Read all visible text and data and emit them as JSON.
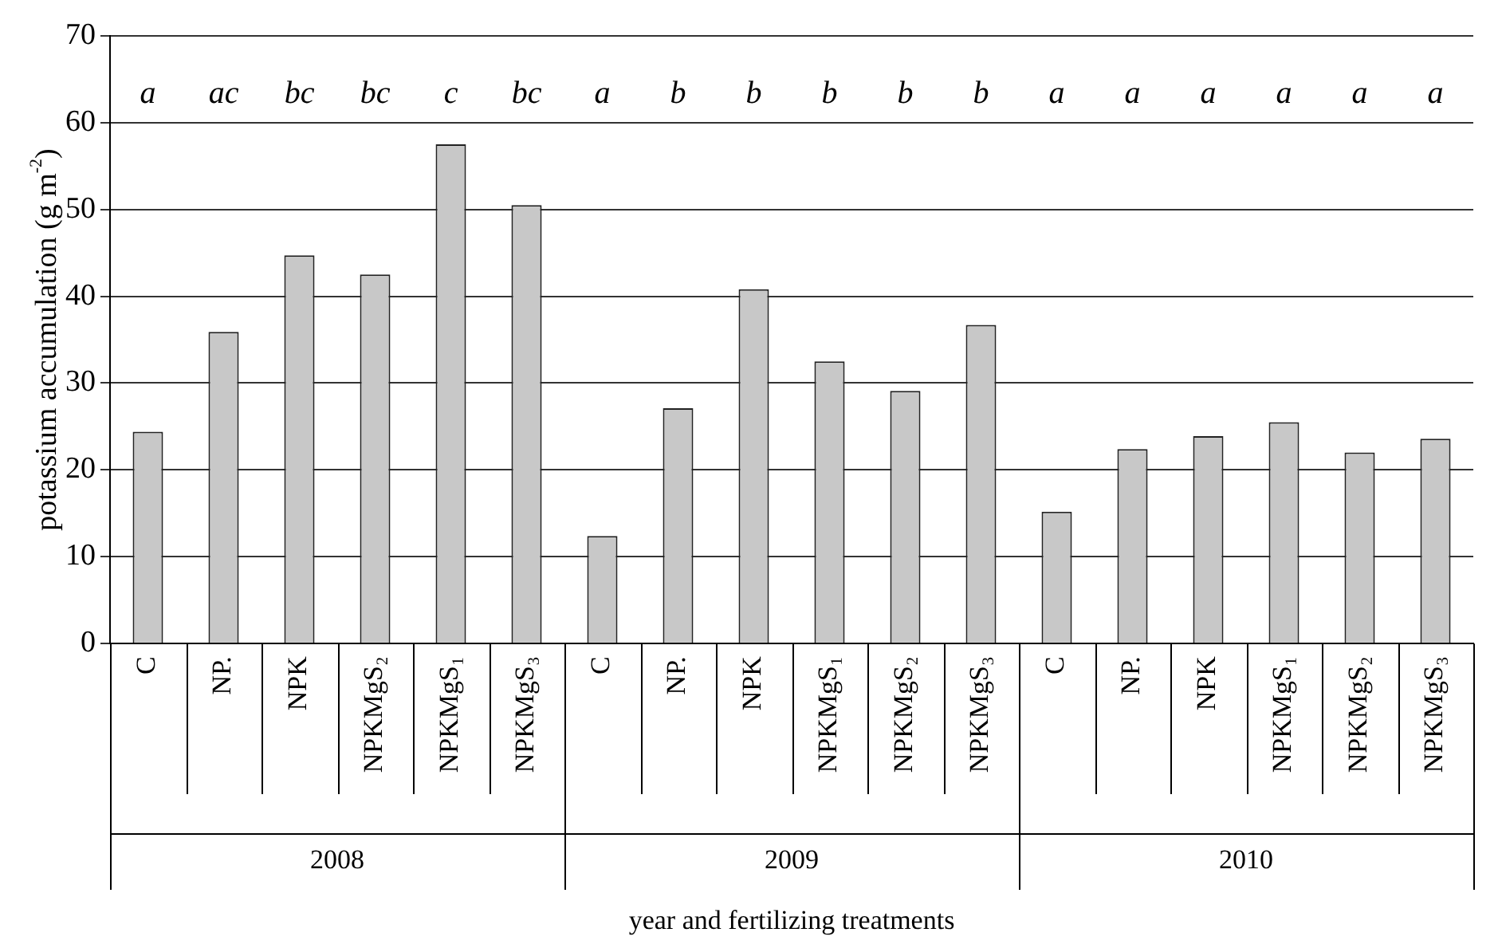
{
  "chart_data": {
    "type": "bar",
    "categories": [
      "C",
      "NP.",
      "NPK",
      "NPKMgS₂",
      "NPKMgS₁",
      "NPKMgS₃",
      "C",
      "NP.",
      "NPK",
      "NPKMgS₁",
      "NPKMgS₂",
      "NPKMgS₃",
      "C",
      "NP.",
      "NPK",
      "NPKMgS₁",
      "NPKMgS₂",
      "NPKMgS₃"
    ],
    "values": [
      24.4,
      35.9,
      44.7,
      42.5,
      57.5,
      50.5,
      12.4,
      27.1,
      40.8,
      32.5,
      29.1,
      36.7,
      15.2,
      22.4,
      23.9,
      25.5,
      22.0,
      23.6
    ],
    "color": "#c8c8c8",
    "ylim": [
      0,
      70
    ],
    "yticks": [
      0,
      10,
      20,
      30,
      40,
      50,
      60,
      70
    ],
    "grid": "y",
    "xlabel": "year and fertilizing treatments",
    "ylabel": "potassium accumulation (g m$^{-2}$)",
    "annotations": [
      "a",
      "ac",
      "bc",
      "bc",
      "c",
      "bc",
      "a",
      "b",
      "b",
      "b",
      "b",
      "b",
      "a",
      "a",
      "a",
      "a",
      "a",
      "a",
      "2008",
      "2009",
      "2010"
    ]
  }
}
